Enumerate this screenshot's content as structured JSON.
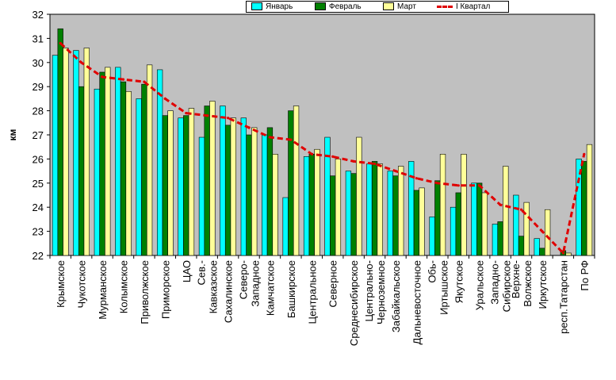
{
  "chart_data": {
    "type": "bar",
    "ylabel": "км",
    "ylim": [
      22,
      32
    ],
    "yticks": [
      22,
      23,
      24,
      25,
      26,
      27,
      28,
      29,
      30,
      31,
      32
    ],
    "grid": false,
    "legend_position": "top",
    "categories": [
      "Крымское",
      "Чукотское",
      "Мурманское",
      "Колымское",
      "Приволжское",
      "Приморское",
      "ЦАО",
      "Сев.-Кавказское",
      "Сахалинское",
      "Северо-Западное",
      "Камчатское",
      "Башкирское",
      "Центральное",
      "Северное",
      "Среднесибирское",
      "Центрально-Черноземное",
      "Забайкальское",
      "Дальневосточное",
      "Обь-Иртышское",
      "Якутское",
      "Уральское",
      "Западно-Сибирское",
      "Верхне-Волжское",
      "Иркутское",
      "респ.Татарстан",
      "По РФ"
    ],
    "series": [
      {
        "name": "Январь",
        "color": "#00ffff",
        "values": [
          30.3,
          30.5,
          28.9,
          29.8,
          28.5,
          29.7,
          27.7,
          26.9,
          28.2,
          27.7,
          27.0,
          24.4,
          26.1,
          26.9,
          25.5,
          25.8,
          25.5,
          25.9,
          23.6,
          24.0,
          25.0,
          23.3,
          24.5,
          22.7,
          21.9,
          26.0
        ]
      },
      {
        "name": "Февраль",
        "color": "#008000",
        "values": [
          31.4,
          29.0,
          29.6,
          29.2,
          29.1,
          27.8,
          27.8,
          28.2,
          27.4,
          27.0,
          27.3,
          28.0,
          26.2,
          25.3,
          25.4,
          25.9,
          25.3,
          24.7,
          25.1,
          24.6,
          25.0,
          23.4,
          22.8,
          22.3,
          22.2,
          25.9
        ]
      },
      {
        "name": "Март",
        "color": "#ffff99",
        "values": [
          30.6,
          30.6,
          29.8,
          28.8,
          29.9,
          28.0,
          28.1,
          28.4,
          27.7,
          27.3,
          26.2,
          28.2,
          26.4,
          26.0,
          26.9,
          25.8,
          25.7,
          24.8,
          26.2,
          26.2,
          24.6,
          25.7,
          24.2,
          23.9,
          22.1,
          26.6
        ]
      },
      {
        "name": "I Квартал",
        "color": "#e00000",
        "style": "dashed-line",
        "values": [
          30.8,
          30.0,
          29.4,
          29.3,
          29.2,
          28.5,
          27.9,
          27.8,
          27.7,
          27.3,
          26.9,
          26.8,
          26.2,
          26.1,
          25.9,
          25.8,
          25.5,
          25.2,
          25.0,
          24.9,
          24.9,
          24.1,
          23.9,
          23.0,
          22.1,
          26.2
        ]
      }
    ],
    "category_lines": [
      [
        "Крымское"
      ],
      [
        "Чукотское"
      ],
      [
        "Мурманское"
      ],
      [
        "Колымское"
      ],
      [
        "Приволжское"
      ],
      [
        "Приморское"
      ],
      [
        "ЦАО"
      ],
      [
        "Сев.-",
        "Кавказское"
      ],
      [
        "Сахалинское"
      ],
      [
        "Северо-",
        "Западное"
      ],
      [
        "Камчатское"
      ],
      [
        "Башкирское"
      ],
      [
        "Центральное"
      ],
      [
        "Северное"
      ],
      [
        "Среднесибирское"
      ],
      [
        "Центрально-",
        "Черноземное"
      ],
      [
        "Забайкальское"
      ],
      [
        "Дальневосточное"
      ],
      [
        "Обь-",
        "Иртышское"
      ],
      [
        "Якутское"
      ],
      [
        "Уральское"
      ],
      [
        "Западно-",
        "Сибирское"
      ],
      [
        "Верхне-",
        "Волжское"
      ],
      [
        "Иркутское"
      ],
      [
        "респ.Татарстан"
      ],
      [
        "По РФ"
      ]
    ]
  },
  "colors": {
    "plot_background": "#c0c0c0",
    "axis": "#000000"
  }
}
